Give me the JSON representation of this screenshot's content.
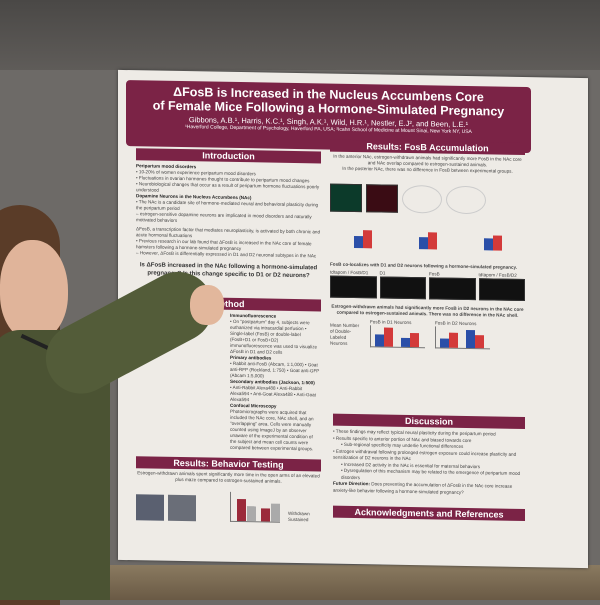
{
  "poster": {
    "title_line1": "ΔFosB is Increased in the Nucleus Accumbens Core",
    "title_line2": "of Female Mice Following a Hormone-Simulated Pregnancy",
    "authors": "Gibbons, A.B.¹, Harris, K.C.¹, Singh, A.K.¹, Wild, H.R.¹, Nestler, E.J², and Been, L.E.¹",
    "affiliations": "¹Haverford College, Department of Psychology, Haverford PA, USA; ²Icahn School of Medicine at Mount Sinai, New York NY, USA",
    "introduction": {
      "heading": "Introduction",
      "sub1": "Peripartum mood disorders",
      "b1": "• 10-20% of women experience peripartum mood disorders",
      "b2": "• Fluctuations in ovarian hormones thought to contribute to peripartum mood changes",
      "b3": "• Neurobiological changes that occur as a result of peripartum hormone fluctuations poorly understood",
      "sub2": "Dopamine Neurons in the Nucleus Accumbens (NAc)",
      "b4": "• The NAc is a candidate site of hormone-mediated neural and behavioral plasticity during the peripartum period",
      "b5": "– estrogen-sensitive dopamine neurons are implicated in mood disorders and naturally motivated behaviors",
      "b6": "ΔFosB, a transcription factor that mediates neuroplasticity, is activated by both chronic and acute hormonal fluctuations",
      "b7": "• Previous research in our lab found that ΔFosB is increased in the NAc core of female hamsters following a hormone-simulated pregnancy",
      "b8": "– However, ΔFosB is differentially expressed in D1 and D2 neuronal subtypes in the NAc",
      "question": "Is ΔFosB increased in the NAc following a hormone-simulated pregnancy? Is this change specific to D1 or D2 neurons?"
    },
    "methods": {
      "heading": "Method",
      "subjects": "Subjects",
      "immuno_head": "Immunofluorescence",
      "immuno": "• On \"postpartum\" day 4, subjects were euthanized via intracardial perfusion • Single-label (FosB) or double-label (FosB+D1 or FosB+D2) immunofluorescence was used to visualize ΔFosB in D1 and D2 cells",
      "primary_head": "Primary antibodies",
      "primary": "• Rabbit anti-FosB (Abcam, 1:1,000) • Goat anti-RFP (Rockland, 1:750) • Goat anti-GFP (Abcam 1:5,000)",
      "secondary_head": "Secondary antibodies (Jackson, 1:500)",
      "secondary": "• Anti-Rabbit Alexa488 • Anti-Rabbit Alexa594 • Anti-Goat Alexa488 • Anti-Goat Alexa594",
      "confocal_head": "Confocal Microscopy",
      "confocal": "Photomicrographs were acquired that included the NAc core, NAc shell, and an \"overlapping\" area. Cells were manually counted using ImageJ by an observer unaware of the experimental condition of the subject and mean cell counts were compared between experimental groups."
    },
    "behavior": {
      "heading": "Results: Behavior Testing",
      "text": "Estrogen-withdrawn animals spent significantly more time in the open arms of an elevated plus maze compared to estrogen-sustained animals.",
      "legend": [
        "Withdrawn",
        "Sustained"
      ]
    },
    "results": {
      "heading": "Results: FosB Accumulation",
      "text1": "In the anterior NAc, estrogen-withdrawn animals had significantly more FosB in the NAc core and NAc overlap compared to estrogen-sustained animals.",
      "text2": "In the posterior NAc, there was no difference in FosB between experimental groups.",
      "coloc": "FosB co-localizes with D1 and D2 neurons following a hormone-simulated pregnancy.",
      "panels": [
        "tdtapom / FosB/D1",
        "D1",
        "FosB",
        "tdtapom / FosB/D2"
      ],
      "d2text": "Estrogen-withdrawn animals had significantly more FosB in D2 neurons in the NAc core compared to estrogen-sustained animals. There was no difference in the NAc shell.",
      "chart1_title": "FosB in D1 Neurons",
      "chart2_title": "FosB in D2 Neurons",
      "ylabel": "Mean Number of Double-Labeled Neurons",
      "categories": [
        "NAc Core",
        "NAc Shell"
      ]
    },
    "discussion": {
      "heading": "Discussion",
      "b1": "• These findings may reflect typical neural plasticity during the peripartum period",
      "b2": "• Results specific to anterior portion of NAc and biased towards core",
      "b3": "▪ Sub-regional specificity may underlie functional differences",
      "b4": "• Estrogen withdrawal following prolonged estrogen exposure could increase plasticity and sensitization of D2 neurons in the NAc",
      "b5": "▪ Increased D2 activity in the NAc is essential for maternal behaviors",
      "b6": "▪ Dysregulation of this mechanism may be related to the emergence of peripartum mood disorders",
      "b7_label": "Future Direction:",
      "b7": " Does preventing the accumulation of ΔFosB in the NAc core increase anxiety-like behavior following a hormone-simulated pregnancy?"
    },
    "ack": {
      "heading": "Acknowledgments and References"
    }
  },
  "colors": {
    "maroon": "#7b2346",
    "withdrawn_red": "#d33a3a",
    "sustained_blue": "#2b4fa8",
    "wall": "#6d6a67",
    "shirt": "#4b5333"
  }
}
